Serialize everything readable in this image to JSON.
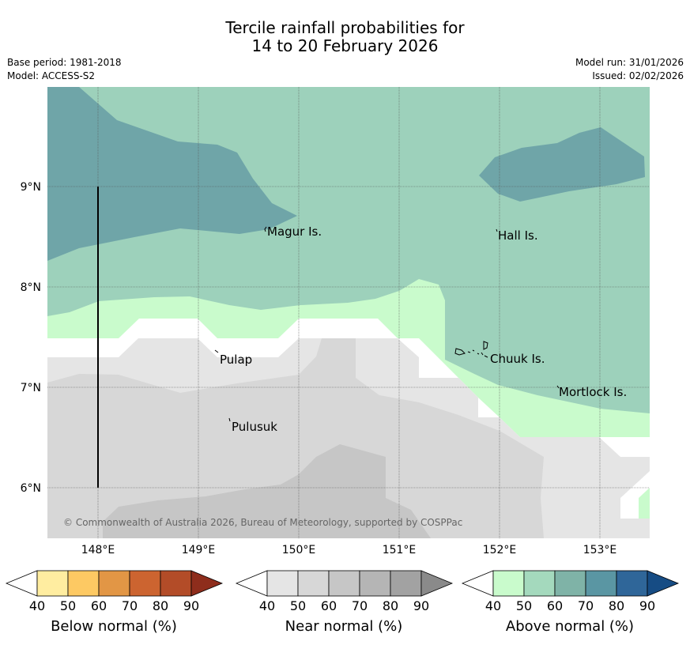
{
  "title": {
    "line1": "Tercile rainfall probabilities for",
    "line2": "14 to 20 February 2026"
  },
  "header": {
    "base_period": "Base period: 1981-2018",
    "model": "Model: ACCESS-S2",
    "model_run": "Model run: 31/01/2026",
    "issued": "Issued: 02/02/2026"
  },
  "map": {
    "lon_range": [
      147.5,
      153.5
    ],
    "lat_range": [
      5.5,
      10.0
    ],
    "lon_ticks": [
      "148°E",
      "149°E",
      "150°E",
      "151°E",
      "152°E",
      "153°E"
    ],
    "lat_ticks": [
      "9°N",
      "8°N",
      "7°N",
      "6°N"
    ],
    "places": [
      {
        "name": "Magur Is.",
        "lon": 149.67,
        "lat": 8.56
      },
      {
        "name": "Hall Is.",
        "lon": 151.98,
        "lat": 8.52
      },
      {
        "name": "Pulap",
        "lon": 149.18,
        "lat": 7.31
      },
      {
        "name": "Chuuk Is.",
        "lon": 151.85,
        "lat": 7.35
      },
      {
        "name": "Mortlock Is.",
        "lon": 152.6,
        "lat": 6.96
      },
      {
        "name": "Pulusuk",
        "lon": 149.3,
        "lat": 6.64
      }
    ],
    "colors": {
      "above_50": "#9dd1bb",
      "above_60": "#6fa5a8",
      "above_40": "#c9fbcc",
      "near_40": "#e5e5e5",
      "near_50": "#d7d7d7",
      "near_60": "#c6c6c6"
    },
    "copyright": "© Commonwealth of Australia 2026, Bureau of Meteorology, supported by COSPPac"
  },
  "colorbars": {
    "ticks": [
      "40",
      "50",
      "60",
      "70",
      "80",
      "90"
    ],
    "below": {
      "label": "Below normal (%)",
      "colors": [
        "#ffeda0",
        "#fdc963",
        "#e29645",
        "#cc6430",
        "#b34c28",
        "#8e2d1c"
      ]
    },
    "near": {
      "label": "Near normal (%)",
      "colors": [
        "#e5e5e5",
        "#d7d7d7",
        "#c6c6c6",
        "#b5b5b5",
        "#a2a2a2",
        "#8a8a8a"
      ]
    },
    "above": {
      "label": "Above normal (%)",
      "colors": [
        "#c9fbcc",
        "#a4d9bd",
        "#7fb3a7",
        "#5a96a3",
        "#2f6699",
        "#164c84"
      ]
    }
  }
}
